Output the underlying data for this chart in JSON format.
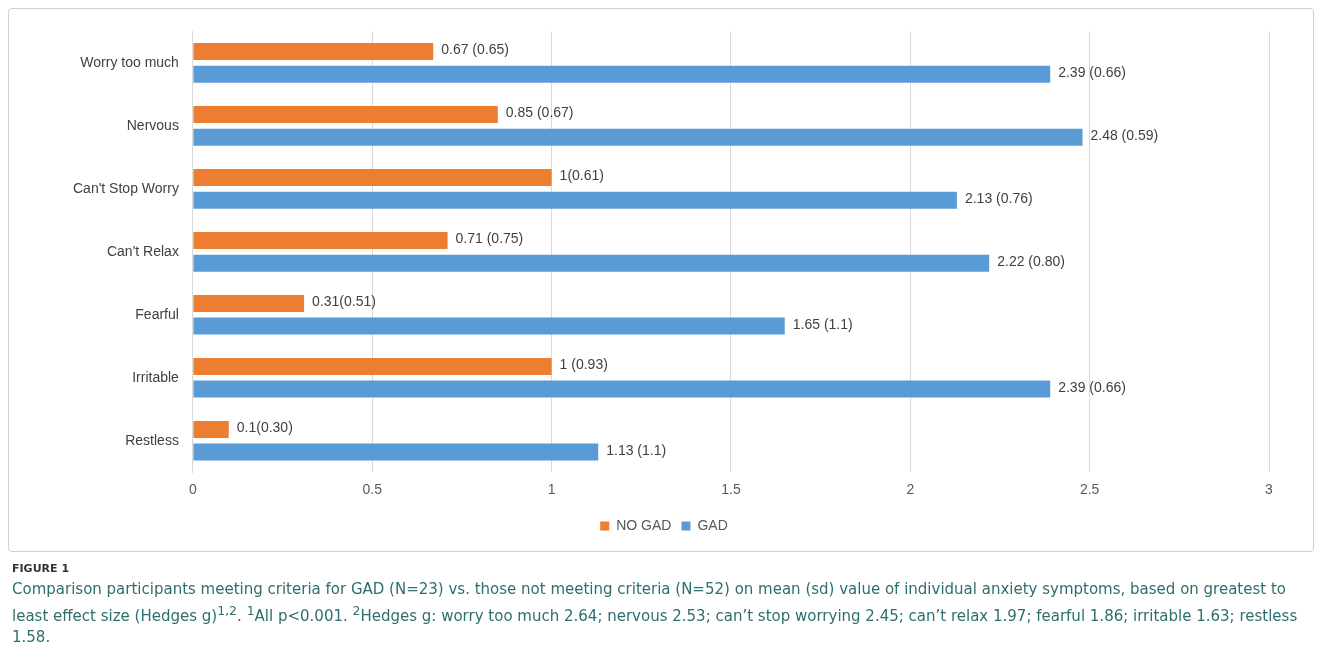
{
  "chart_data": {
    "type": "bar",
    "orientation": "horizontal",
    "categories": [
      "Worry too much",
      "Nervous",
      "Can't Stop Worry",
      "Can't Relax",
      "Fearful",
      "Irritable",
      "Restless"
    ],
    "series": [
      {
        "name": "NO GAD",
        "color": "#ed7d31",
        "values": [
          0.67,
          0.85,
          1,
          0.71,
          0.31,
          1,
          0.1
        ],
        "value_labels": [
          "0.67 (0.65)",
          "0.85 (0.67)",
          "1(0.61)",
          "0.71 (0.75)",
          "0.31(0.51)",
          "1 (0.93)",
          "0.1(0.30)"
        ]
      },
      {
        "name": "GAD",
        "color": "#5b9bd5",
        "values": [
          2.39,
          2.48,
          2.13,
          2.22,
          1.65,
          2.39,
          1.13
        ],
        "value_labels": [
          "2.39 (0.66)",
          "2.48 (0.59)",
          "2.13 (0.76)",
          "2.22 (0.80)",
          "1.65 (1.1)",
          "2.39 (0.66)",
          "1.13 (1.1)"
        ]
      }
    ],
    "xlim": [
      0,
      3
    ],
    "xticks": [
      0,
      0.5,
      1,
      1.5,
      2,
      2.5,
      3
    ],
    "grid": "x",
    "legend": "bottom",
    "annotations": [
      "FIGURE 1",
      "Comparison participants meeting criteria for GAD (N=23) vs. those not meeting criteria (N=52) on mean (sd) value of individual anxiety symptoms, based on greatest to least effect size (Hedges g)$^{1,2}$. $^{1}$All p<0.001. $^{2}$Hedges g: worry too much 2.64; nervous 2.53; can’t stop worrying 2.45; can’t relax 1.97; fearful 1.86; irritable 1.63; restless 1.58."
    ]
  }
}
